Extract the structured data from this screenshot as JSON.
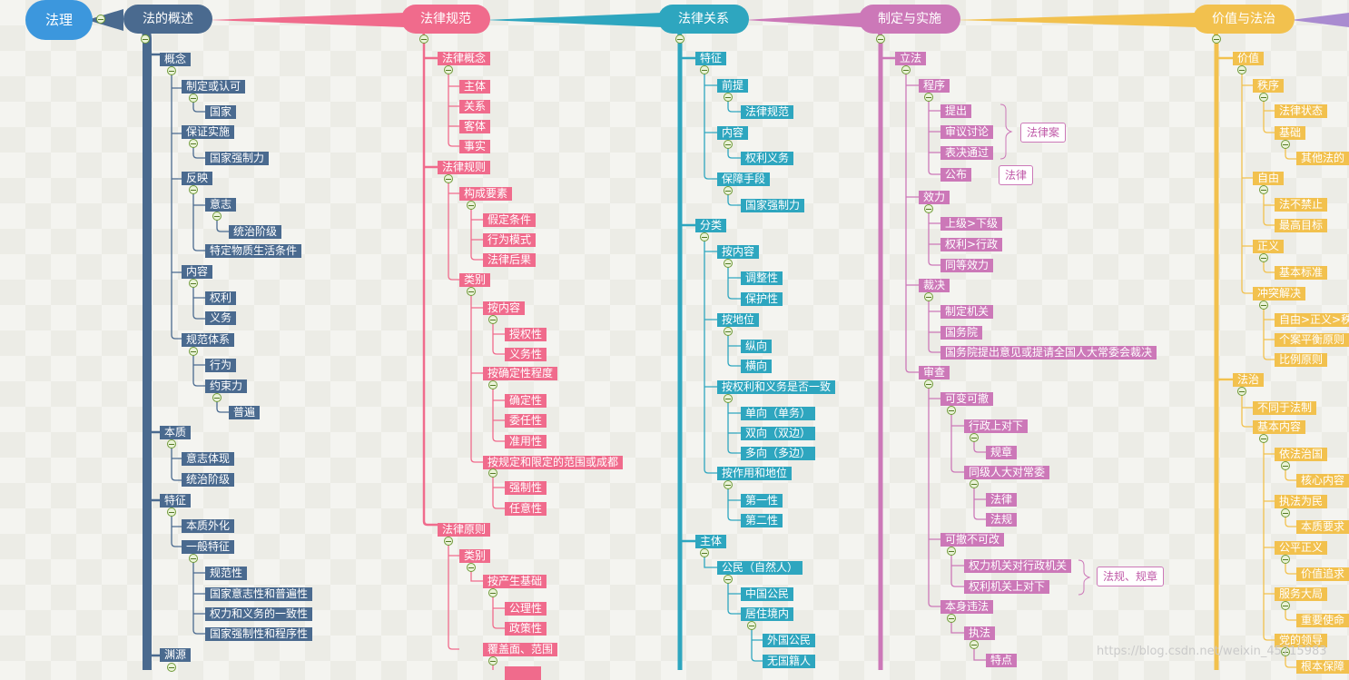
{
  "root": "法理",
  "hubs": [
    "法的概述",
    "法律规范",
    "法律关系",
    "制定与实施",
    "价值与法治"
  ],
  "colors": {
    "law_overview": "#4a6a8f",
    "norms": "#f06b8c",
    "relations": "#2ea6bf",
    "legislation": "#cc78b8",
    "values": "#f2c14e",
    "connector_purple": "#a98bd0",
    "root": "#3c97dd"
  },
  "col1": {
    "concept": "概念",
    "make_or_recognize": "制定或认可",
    "state": "国家",
    "guarantee": "保证实施",
    "coercion": "国家强制力",
    "reflect": "反映",
    "will": "意志",
    "ruling_class": "统治阶级",
    "material_conditions": "特定物质生活条件",
    "content": "内容",
    "rights": "权利",
    "duties": "义务",
    "norm_system": "规范体系",
    "behavior": "行为",
    "binding": "约束力",
    "universal": "普遍",
    "essence": "本质",
    "will_embodiment": "意志体现",
    "ruling_class2": "统治阶级",
    "features": "特征",
    "essence_external": "本质外化",
    "general_features": "一般特征",
    "normativity": "规范性",
    "state_will_universal": "国家意志性和普遍性",
    "rights_duties_consistency": "权力和义务的一致性",
    "coercion_procedure": "国家强制性和程序性",
    "origin": "渊源"
  },
  "col2": {
    "law_concept": "法律概念",
    "subject": "主体",
    "relation": "关系",
    "object": "客体",
    "fact": "事实",
    "law_rule": "法律规则",
    "elements": "构成要素",
    "hypothesis": "假定条件",
    "behavior_mode": "行为模式",
    "legal_consequence": "法律后果",
    "category": "类别",
    "by_content": "按内容",
    "empowering": "授权性",
    "obligatory": "义务性",
    "by_certainty": "按确定性程度",
    "definite": "确定性",
    "delegated": "委任性",
    "quasi": "准用性",
    "by_scope": "按规定和限定的范围或成都",
    "mandatory": "强制性",
    "arbitrary": "任意性",
    "law_principle": "法律原则",
    "category2": "类别",
    "by_basis": "按产生基础",
    "rational": "公理性",
    "policy": "政策性",
    "coverage": "覆盖面、范围"
  },
  "col3": {
    "feature": "特征",
    "premise": "前提",
    "legal_norm": "法律规范",
    "content": "内容",
    "rights_duties": "权利义务",
    "guarantee_means": "保障手段",
    "coercion": "国家强制力",
    "classification": "分类",
    "by_content": "按内容",
    "regulatory": "调整性",
    "protective": "保护性",
    "by_position": "按地位",
    "vertical": "纵向",
    "horizontal": "横向",
    "by_consistency": "按权利和义务是否一致",
    "unilateral": "单向（单务）",
    "bilateral": "双向（双边）",
    "multilateral": "多向（多边）",
    "by_function": "按作用和地位",
    "primary": "第一性",
    "secondary": "第二性",
    "subject": "主体",
    "citizen": "公民（自然人）",
    "chinese_citizen": "中国公民",
    "resident": "居住境内",
    "foreign_citizen": "外国公民",
    "stateless": "无国籍人"
  },
  "col4": {
    "legislation": "立法",
    "procedure": "程序",
    "propose": "提出",
    "deliberate": "审议讨论",
    "vote": "表决通过",
    "publish": "公布",
    "bill": "法律案",
    "law": "法律",
    "effect": "效力",
    "upper_lower": "上级>下级",
    "power_admin": "权利>行政",
    "equal": "同等效力",
    "adjudicate": "裁决",
    "enacting_organ": "制定机关",
    "state_council": "国务院",
    "npc_ruling": "国务院提出意见或提请全国人大常委会裁决",
    "review": "审查",
    "changeable_revocable": "可变可撤",
    "admin_superior": "行政上对下",
    "rules": "规章",
    "npc_peer": "同级人大对常委",
    "law2": "法律",
    "regulation": "法规",
    "revocable_unchangeable": "可撤不可改",
    "power_to_admin": "权力机关对行政机关",
    "power_superior": "权利机关上对下",
    "regs_rules": "法规、规章",
    "violation": "本身违法",
    "enforcement": "执法",
    "feature": "特点"
  },
  "col5": {
    "value": "价值",
    "order": "秩序",
    "legal_state": "法律状态",
    "basis": "基础",
    "other_law": "其他法的",
    "freedom": "自由",
    "not_prohibited": "法不禁止",
    "highest_goal": "最高目标",
    "justice": "正义",
    "basic_standard": "基本标准",
    "conflict": "冲突解决",
    "priority": "自由>正义>秩",
    "balance": "个案平衡原则",
    "proportion": "比例原则",
    "rule_of_law": "法治",
    "not_same": "不同于法制",
    "basic_content": "基本内容",
    "govern_by_law": "依法治国",
    "core": "核心内容",
    "for_people": "执法为民",
    "essential": "本质要求",
    "fairness": "公平正义",
    "pursuit": "价值追求",
    "overall": "服务大局",
    "mission": "重要使命",
    "party": "党的领导",
    "guarantee": "根本保障"
  },
  "watermark": "https://blog.csdn.net/weixin_45715983"
}
